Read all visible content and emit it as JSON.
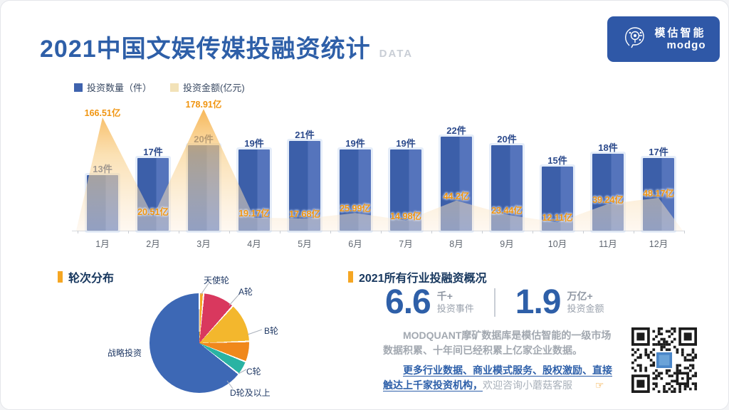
{
  "header": {
    "title": "2021中国文娱传媒投融资统计",
    "tag": "DATA",
    "logo_name": "模估智能",
    "logo_sub": "modgo"
  },
  "legend": {
    "bars": "投资数量（件）",
    "area": "投资金额(亿元)"
  },
  "chart_data": {
    "type": "bar",
    "categories": [
      "1月",
      "2月",
      "3月",
      "4月",
      "5月",
      "6月",
      "7月",
      "8月",
      "9月",
      "10月",
      "11月",
      "12月"
    ],
    "series": [
      {
        "name": "投资数量（件）",
        "type": "bar",
        "unit": "件",
        "color": "#3f63ae",
        "values": [
          13,
          17,
          20,
          19,
          21,
          19,
          19,
          22,
          20,
          15,
          18,
          17
        ]
      },
      {
        "name": "投资金额(亿元)",
        "type": "area",
        "unit": "亿",
        "color": "#f5a02d",
        "values": [
          166.51,
          20.51,
          178.91,
          19.17,
          17.68,
          25.99,
          14.98,
          44.2,
          23.44,
          12.11,
          39.24,
          48.17
        ]
      }
    ],
    "title": "2021中国文娱传媒投融资统计",
    "xlabel": "",
    "ylabel": "",
    "grid": false,
    "legend_position": "top-left"
  },
  "round_distribution": {
    "title": "轮次分布",
    "slices": [
      {
        "label": "天使轮",
        "color": "#f5a623",
        "deg": [
          0,
          5
        ],
        "pct": 1.4
      },
      {
        "label": "A轮",
        "color": "#d9385e",
        "deg": [
          5,
          42
        ],
        "pct": 10.3
      },
      {
        "label": "B轮",
        "color": "#f3b72d",
        "deg": [
          42,
          88
        ],
        "pct": 12.8
      },
      {
        "label": "C轮",
        "color": "#f0881c",
        "deg": [
          88,
          112
        ],
        "pct": 6.7
      },
      {
        "label": "D轮及以上",
        "color": "#2ab3a3",
        "deg": [
          112,
          128
        ],
        "pct": 4.4
      },
      {
        "label": "战略投资",
        "color": "#3d68b5",
        "deg": [
          128,
          360
        ],
        "pct": 64.4
      }
    ]
  },
  "overview": {
    "title": "2021所有行业投融资概况",
    "stats": [
      {
        "value": "6.6",
        "unit": "千+",
        "label": "投资事件"
      },
      {
        "value": "1.9",
        "unit": "万亿+",
        "label": "投资金额"
      }
    ],
    "desc": "MODQUANT摩矿数据库是模估智能的一级市场数据积累、十年间已经积累上亿家企业数据。",
    "promo": "更多行业数据、商业模式服务、股权激励、直接触达上千家投资机构，",
    "promo_tail": "欢迎咨询小蘑菇客服",
    "pointer": "☞"
  },
  "colors": {
    "title_blue": "#2e5fa8",
    "bar_blue": "#3f63ae",
    "area_orange": "#f5a02d",
    "amount_label": "#f0940f",
    "marker_orange": "#f5a623",
    "legend_area_swatch": "#f2e2b8"
  }
}
